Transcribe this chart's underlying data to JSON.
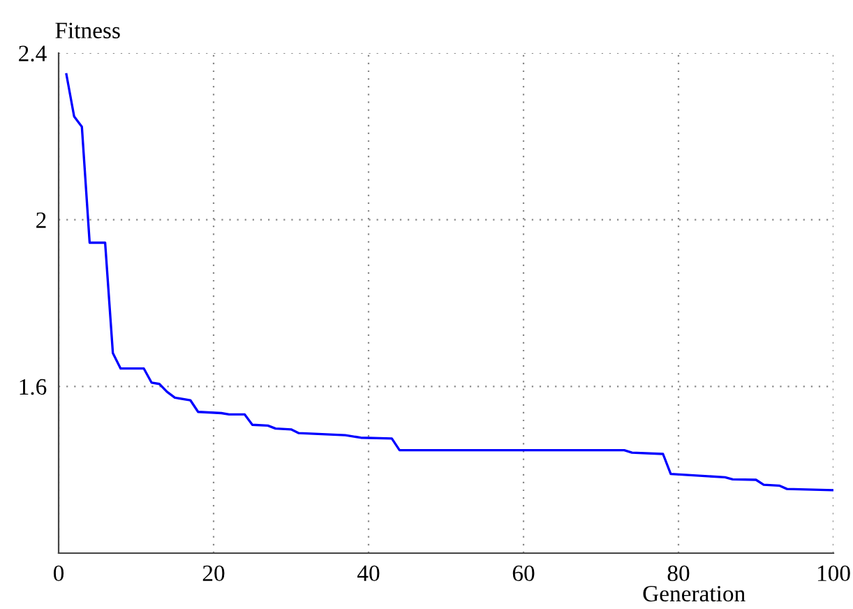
{
  "chart_data": {
    "type": "line",
    "xlabel": "Generation",
    "ylabel": "Fitness",
    "x": [
      1,
      2,
      3,
      4,
      6,
      7,
      8,
      11,
      12,
      13,
      14,
      15,
      17,
      18,
      21,
      22,
      24,
      25,
      27,
      28,
      30,
      31,
      37,
      39,
      43,
      44,
      73,
      74,
      78,
      79,
      86,
      87,
      90,
      91,
      93,
      94,
      100
    ],
    "series": [
      {
        "color": "#0000ff",
        "values": [
          2.349,
          2.248,
          2.223,
          1.945,
          1.945,
          1.68,
          1.643,
          1.643,
          1.609,
          1.606,
          1.587,
          1.573,
          1.567,
          1.539,
          1.536,
          1.533,
          1.533,
          1.508,
          1.506,
          1.499,
          1.497,
          1.488,
          1.483,
          1.477,
          1.475,
          1.447,
          1.447,
          1.441,
          1.438,
          1.39,
          1.382,
          1.377,
          1.376,
          1.364,
          1.362,
          1.354,
          1.351
        ]
      }
    ],
    "xlim": [
      0,
      100
    ],
    "ylim": [
      1.2,
      2.4
    ],
    "xticks": [
      0,
      20,
      40,
      60,
      80,
      100
    ],
    "yticks": [
      1.6,
      2,
      2.4
    ],
    "grid": true,
    "line_style": "solid",
    "marker": "none",
    "legend": false
  }
}
